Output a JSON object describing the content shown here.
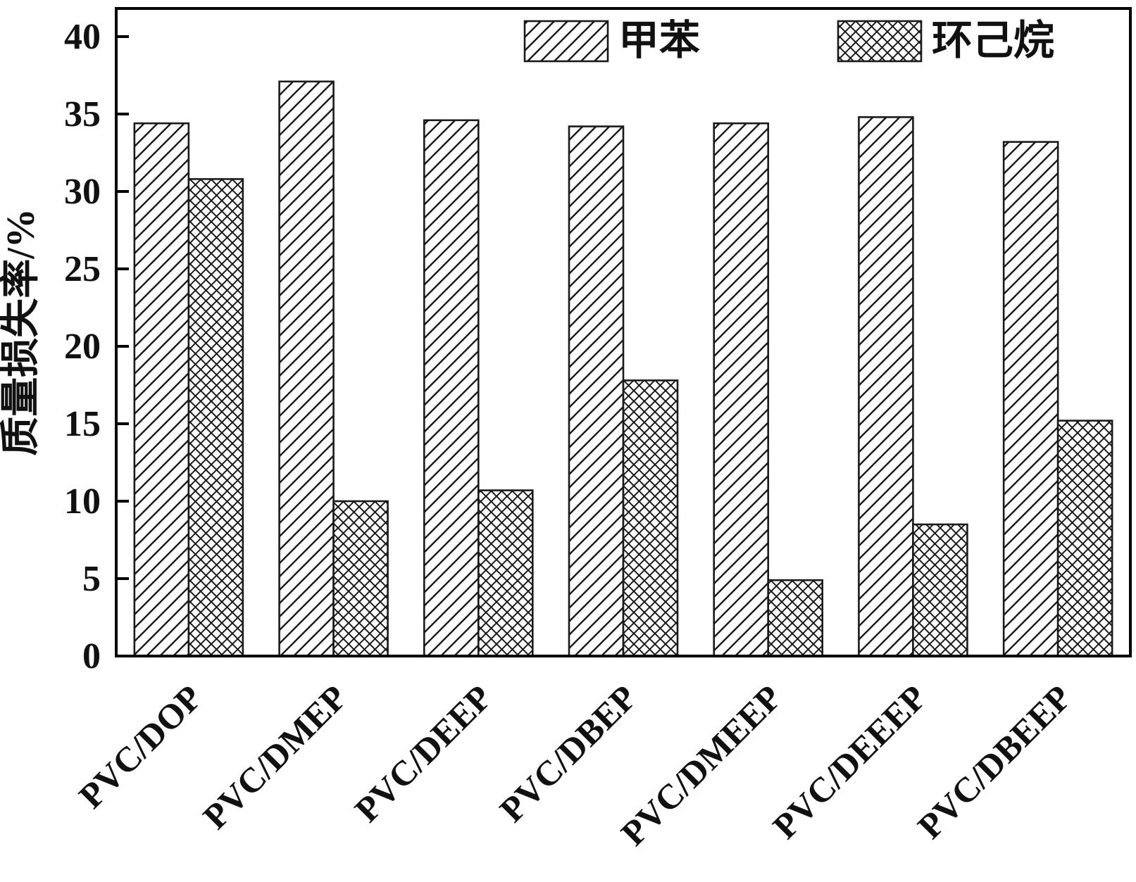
{
  "chart_data": {
    "type": "bar",
    "categories": [
      "PVC/DOP",
      "PVC/DMEP",
      "PVC/DEEP",
      "PVC/DBEP",
      "PVC/DMEEP",
      "PVC/DEEEP",
      "PVC/DBEEP"
    ],
    "series": [
      {
        "name": "甲苯",
        "hatch": "diagonal",
        "values": [
          34.4,
          37.1,
          34.6,
          34.2,
          34.4,
          34.8,
          33.2
        ]
      },
      {
        "name": "环己烷",
        "hatch": "crosshatch",
        "values": [
          30.8,
          10.0,
          10.7,
          17.8,
          4.9,
          8.5,
          15.2
        ]
      }
    ],
    "title": "",
    "xlabel": "",
    "ylabel": "质量损失率/%",
    "ylim": [
      0,
      40
    ],
    "yticks": [
      0,
      5,
      10,
      15,
      20,
      25,
      30,
      35,
      40
    ],
    "grid": false,
    "legend_position": "top-inside",
    "colors": {
      "bar_fill": "#ffffff",
      "bar_stroke": "#1a1a1a",
      "axis": "#000000",
      "text": "#111111"
    }
  }
}
